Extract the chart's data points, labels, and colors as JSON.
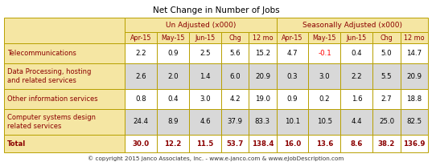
{
  "title": "Net Change in Number of Jobs",
  "copyright": "© copyright 2015 Janco Associates, Inc. - www.e-janco.com & www.eJobDescription.com",
  "header2": [
    "Apr-15",
    "May-15",
    "Jun-15",
    "Chg",
    "12 mo",
    "Apr-15",
    "May-15",
    "Jun-15",
    "Chg",
    "12 mo"
  ],
  "span1_label": "Un Adjusted (x000)",
  "span2_label": "Seasonally Adjusted (x000)",
  "rows": [
    [
      "Telecommunications",
      "2.2",
      "0.9",
      "2.5",
      "5.6",
      "15.2",
      "4.7",
      "-0.1",
      "0.4",
      "5.0",
      "14.7"
    ],
    [
      "Data Processing, hosting\nand related services",
      "2.6",
      "2.0",
      "1.4",
      "6.0",
      "20.9",
      "0.3",
      "3.0",
      "2.2",
      "5.5",
      "20.9"
    ],
    [
      "Other information services",
      "0.8",
      "0.4",
      "3.0",
      "4.2",
      "19.0",
      "0.9",
      "0.2",
      "1.6",
      "2.7",
      "18.8"
    ],
    [
      "Computer systems design\nrelated services",
      "24.4",
      "8.9",
      "4.6",
      "37.9",
      "83.3",
      "10.1",
      "10.5",
      "4.4",
      "25.0",
      "82.5"
    ],
    [
      "Total",
      "30.0",
      "12.2",
      "11.5",
      "53.7",
      "138.4",
      "16.0",
      "13.6",
      "8.6",
      "38.2",
      "136.9"
    ]
  ],
  "header_bg": "#F5E6A3",
  "label_bg": "#F5E6A3",
  "row_bgs": [
    "#FFFFFF",
    "#D8D8D8",
    "#FFFFFF",
    "#D8D8D8",
    "#FFFFFF"
  ],
  "border_color": "#B8A000",
  "label_text_color": "#8B0000",
  "data_text_color": "#000000",
  "negative_color": "#FF0000",
  "total_label_color": "#8B0000",
  "total_data_color": "#8B0000",
  "title_color": "#000000",
  "copyright_color": "#333333",
  "fig_width": 5.37,
  "fig_height": 2.02,
  "dpi": 100
}
